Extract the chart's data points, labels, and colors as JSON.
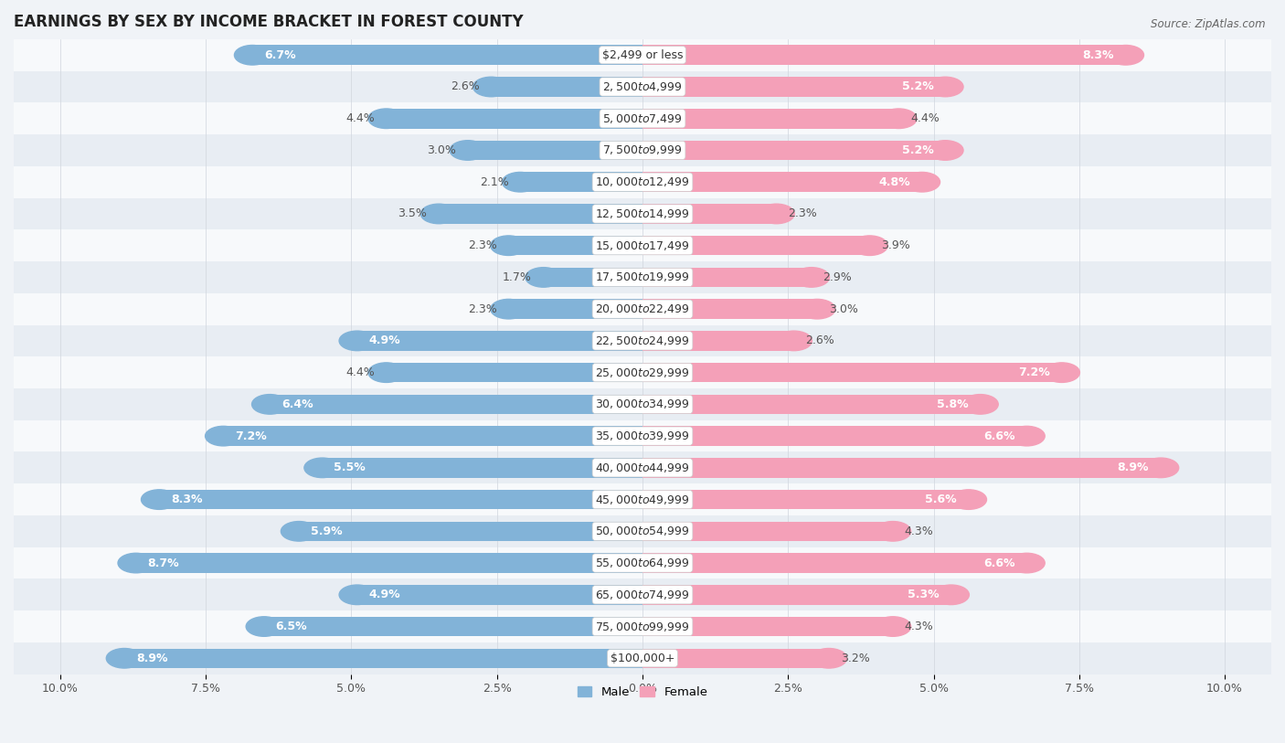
{
  "title": "EARNINGS BY SEX BY INCOME BRACKET IN FOREST COUNTY",
  "source": "Source: ZipAtlas.com",
  "categories": [
    "$2,499 or less",
    "$2,500 to $4,999",
    "$5,000 to $7,499",
    "$7,500 to $9,999",
    "$10,000 to $12,499",
    "$12,500 to $14,999",
    "$15,000 to $17,499",
    "$17,500 to $19,999",
    "$20,000 to $22,499",
    "$22,500 to $24,999",
    "$25,000 to $29,999",
    "$30,000 to $34,999",
    "$35,000 to $39,999",
    "$40,000 to $44,999",
    "$45,000 to $49,999",
    "$50,000 to $54,999",
    "$55,000 to $64,999",
    "$65,000 to $74,999",
    "$75,000 to $99,999",
    "$100,000+"
  ],
  "male_values": [
    6.7,
    2.6,
    4.4,
    3.0,
    2.1,
    3.5,
    2.3,
    1.7,
    2.3,
    4.9,
    4.4,
    6.4,
    7.2,
    5.5,
    8.3,
    5.9,
    8.7,
    4.9,
    6.5,
    8.9
  ],
  "female_values": [
    8.3,
    5.2,
    4.4,
    5.2,
    4.8,
    2.3,
    3.9,
    2.9,
    3.0,
    2.6,
    7.2,
    5.8,
    6.6,
    8.9,
    5.6,
    4.3,
    6.6,
    5.3,
    4.3,
    3.2
  ],
  "male_color": "#82b3d8",
  "female_color": "#f4a0b8",
  "background_color": "#f0f3f7",
  "row_color_odd": "#e8edf3",
  "row_color_even": "#f7f9fb",
  "axis_max": 10.0,
  "bar_height": 0.62,
  "title_fontsize": 12,
  "label_fontsize": 9,
  "tick_fontsize": 9,
  "source_fontsize": 8.5
}
